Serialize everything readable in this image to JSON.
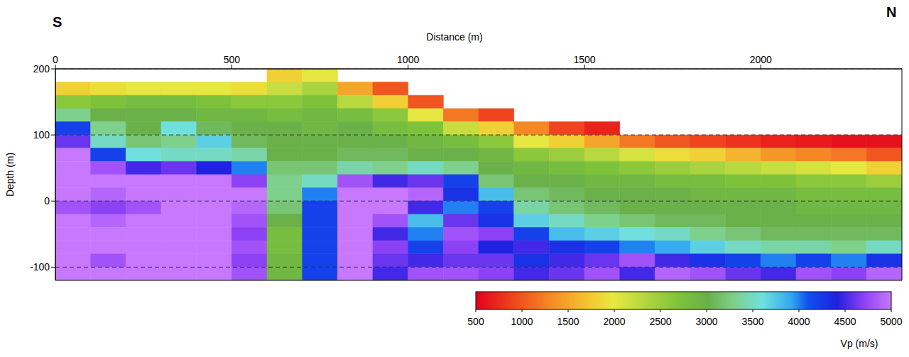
{
  "chart_data": {
    "type": "heatmap",
    "x_label": "Distance (m)",
    "y_label": "Depth (m)",
    "annotations": [
      "S",
      "N"
    ],
    "xlim": [
      0,
      2400
    ],
    "xticks": [
      0,
      500,
      1000,
      1500,
      2000
    ],
    "ylim": [
      -120,
      200
    ],
    "yticks": [
      -100,
      0,
      100,
      200
    ],
    "grid": true,
    "x_edges": [
      0,
      100,
      200,
      300,
      400,
      500,
      600,
      700,
      800,
      900,
      1000,
      1100,
      1200,
      1300,
      1400,
      1500,
      1600,
      1700,
      1800,
      1900,
      2000,
      2100,
      2200,
      2300,
      2400
    ],
    "y_edges": [
      200,
      180,
      160,
      140,
      120,
      100,
      80,
      60,
      40,
      20,
      0,
      -20,
      -40,
      -60,
      -80,
      -100,
      -120
    ],
    "cells": [
      [
        null,
        null,
        null,
        null,
        null,
        null,
        1800,
        2000,
        null,
        null,
        null,
        null,
        null,
        null,
        null,
        null,
        null,
        null,
        null,
        null,
        null,
        null,
        null,
        null
      ],
      [
        1800,
        1900,
        2000,
        2000,
        2000,
        1900,
        2200,
        2400,
        1500,
        1000,
        null,
        null,
        null,
        null,
        null,
        null,
        null,
        null,
        null,
        null,
        null,
        null,
        null,
        null
      ],
      [
        2600,
        2700,
        2800,
        2800,
        2700,
        2600,
        2600,
        2700,
        2300,
        1800,
        1000,
        null,
        null,
        null,
        null,
        null,
        null,
        null,
        null,
        null,
        null,
        null,
        null,
        null
      ],
      [
        3300,
        3000,
        3000,
        3000,
        2900,
        2900,
        2800,
        2900,
        2800,
        2600,
        2000,
        1200,
        900,
        null,
        null,
        null,
        null,
        null,
        null,
        null,
        null,
        null,
        null,
        null
      ],
      [
        4200,
        3300,
        3000,
        3600,
        3100,
        3000,
        3000,
        2900,
        3000,
        2800,
        2700,
        2200,
        1800,
        1300,
        900,
        700,
        null,
        null,
        null,
        null,
        null,
        null,
        null,
        null
      ],
      [
        4600,
        3500,
        3200,
        3300,
        3700,
        3100,
        3000,
        3000,
        3000,
        3000,
        2900,
        2800,
        2600,
        2000,
        1800,
        1500,
        1200,
        1000,
        900,
        800,
        700,
        650,
        600,
        600
      ],
      [
        5000,
        4200,
        3600,
        3500,
        3500,
        3400,
        3000,
        3000,
        3100,
        3100,
        3000,
        3000,
        2900,
        2600,
        2500,
        2300,
        2100,
        1900,
        1800,
        1600,
        1400,
        1300,
        1200,
        1000
      ],
      [
        5000,
        4800,
        4500,
        4600,
        4400,
        4000,
        3200,
        3200,
        3400,
        3300,
        3500,
        3300,
        3000,
        2900,
        2800,
        2700,
        2600,
        2500,
        2400,
        2300,
        2200,
        2100,
        2000,
        1800
      ],
      [
        5000,
        5000,
        5000,
        5000,
        5000,
        4700,
        3300,
        3500,
        4800,
        4500,
        4600,
        4200,
        3200,
        3000,
        3000,
        2900,
        2900,
        2800,
        2800,
        2700,
        2700,
        2600,
        2600,
        2500
      ],
      [
        5000,
        4900,
        5000,
        5000,
        5000,
        5000,
        3300,
        4000,
        5000,
        5000,
        4900,
        4300,
        3800,
        3200,
        3100,
        3000,
        3000,
        3000,
        2900,
        2900,
        2900,
        2800,
        2800,
        2800
      ],
      [
        4800,
        4700,
        4800,
        5000,
        5000,
        4900,
        3200,
        4200,
        5000,
        5000,
        4500,
        4000,
        4200,
        3400,
        3200,
        3100,
        3000,
        3000,
        3000,
        3000,
        3000,
        2900,
        2900,
        2900
      ],
      [
        5000,
        4900,
        5000,
        5000,
        5000,
        4800,
        3000,
        4200,
        5000,
        4800,
        3800,
        4600,
        4300,
        3700,
        3500,
        3300,
        3200,
        3100,
        3100,
        3000,
        3000,
        3000,
        3000,
        3000
      ],
      [
        5000,
        5000,
        5000,
        5000,
        5000,
        4700,
        2800,
        4200,
        5000,
        4500,
        4000,
        4800,
        4700,
        4200,
        3800,
        3700,
        3600,
        3500,
        3300,
        3200,
        3100,
        3100,
        3100,
        3100
      ],
      [
        5000,
        5000,
        5000,
        5000,
        5000,
        4800,
        2800,
        4200,
        5000,
        4700,
        4200,
        4700,
        4400,
        4500,
        4300,
        4200,
        4000,
        3900,
        3700,
        3500,
        3400,
        3400,
        3300,
        3500
      ],
      [
        5000,
        4800,
        5000,
        5000,
        5000,
        4700,
        2900,
        4200,
        5000,
        4600,
        4500,
        4600,
        4600,
        4300,
        4500,
        4600,
        4800,
        4500,
        4300,
        4200,
        4000,
        4200,
        4000,
        4300
      ],
      [
        5000,
        5000,
        5000,
        5000,
        5000,
        4800,
        2900,
        4200,
        5000,
        4500,
        4800,
        4800,
        4700,
        4500,
        4600,
        4800,
        4500,
        4900,
        4800,
        4600,
        4500,
        4800,
        4700,
        4900
      ]
    ],
    "color_range": [
      500,
      5000
    ],
    "color_ticks": [
      500,
      1000,
      1500,
      2000,
      2500,
      3000,
      3500,
      4000,
      4500,
      5000
    ],
    "color_label": "Vp (m/s)"
  }
}
